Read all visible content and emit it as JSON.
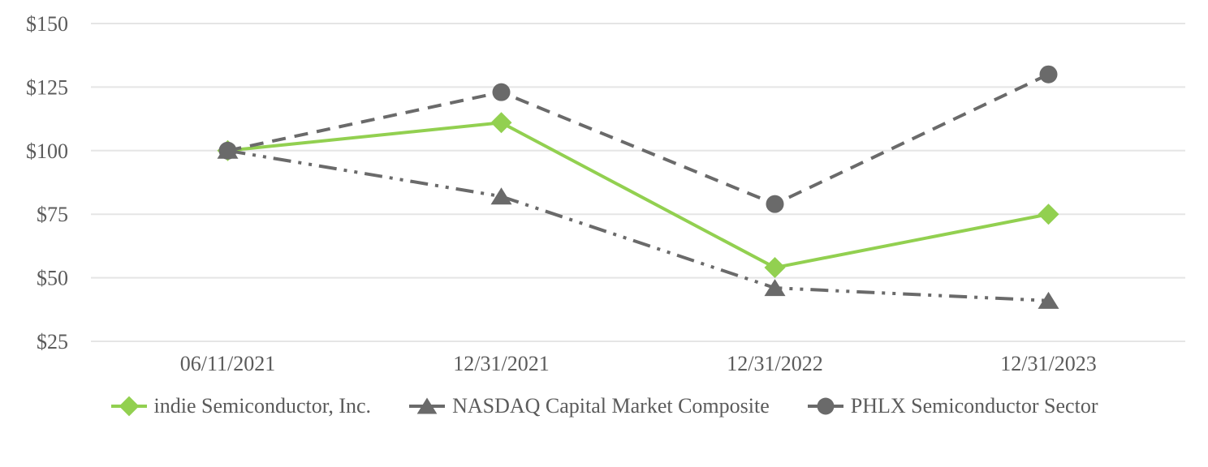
{
  "chart_data": {
    "type": "line",
    "x_categories": [
      "06/11/2021",
      "12/31/2021",
      "12/31/2022",
      "12/31/2023"
    ],
    "y_axis": {
      "tick_prefix": "$",
      "tick_values": [
        150,
        125,
        100,
        75,
        50,
        25
      ],
      "min": 25,
      "max": 150,
      "gridlines": "horizontal-only"
    },
    "legend_position": "bottom",
    "series": [
      {
        "name": "indie Semiconductor, Inc.",
        "values": [
          100,
          111,
          54,
          75
        ],
        "color": "#92D050",
        "marker": "diamond",
        "line_style": "solid"
      },
      {
        "name": "NASDAQ Capital Market Composite",
        "values": [
          100,
          82,
          46,
          41
        ],
        "color": "#6A6A6A",
        "marker": "triangle",
        "line_style": "dash-dot-dot"
      },
      {
        "name": "PHLX Semiconductor Sector",
        "values": [
          100,
          123,
          79,
          130
        ],
        "color": "#6A6A6A",
        "marker": "circle",
        "line_style": "dashed"
      }
    ]
  }
}
